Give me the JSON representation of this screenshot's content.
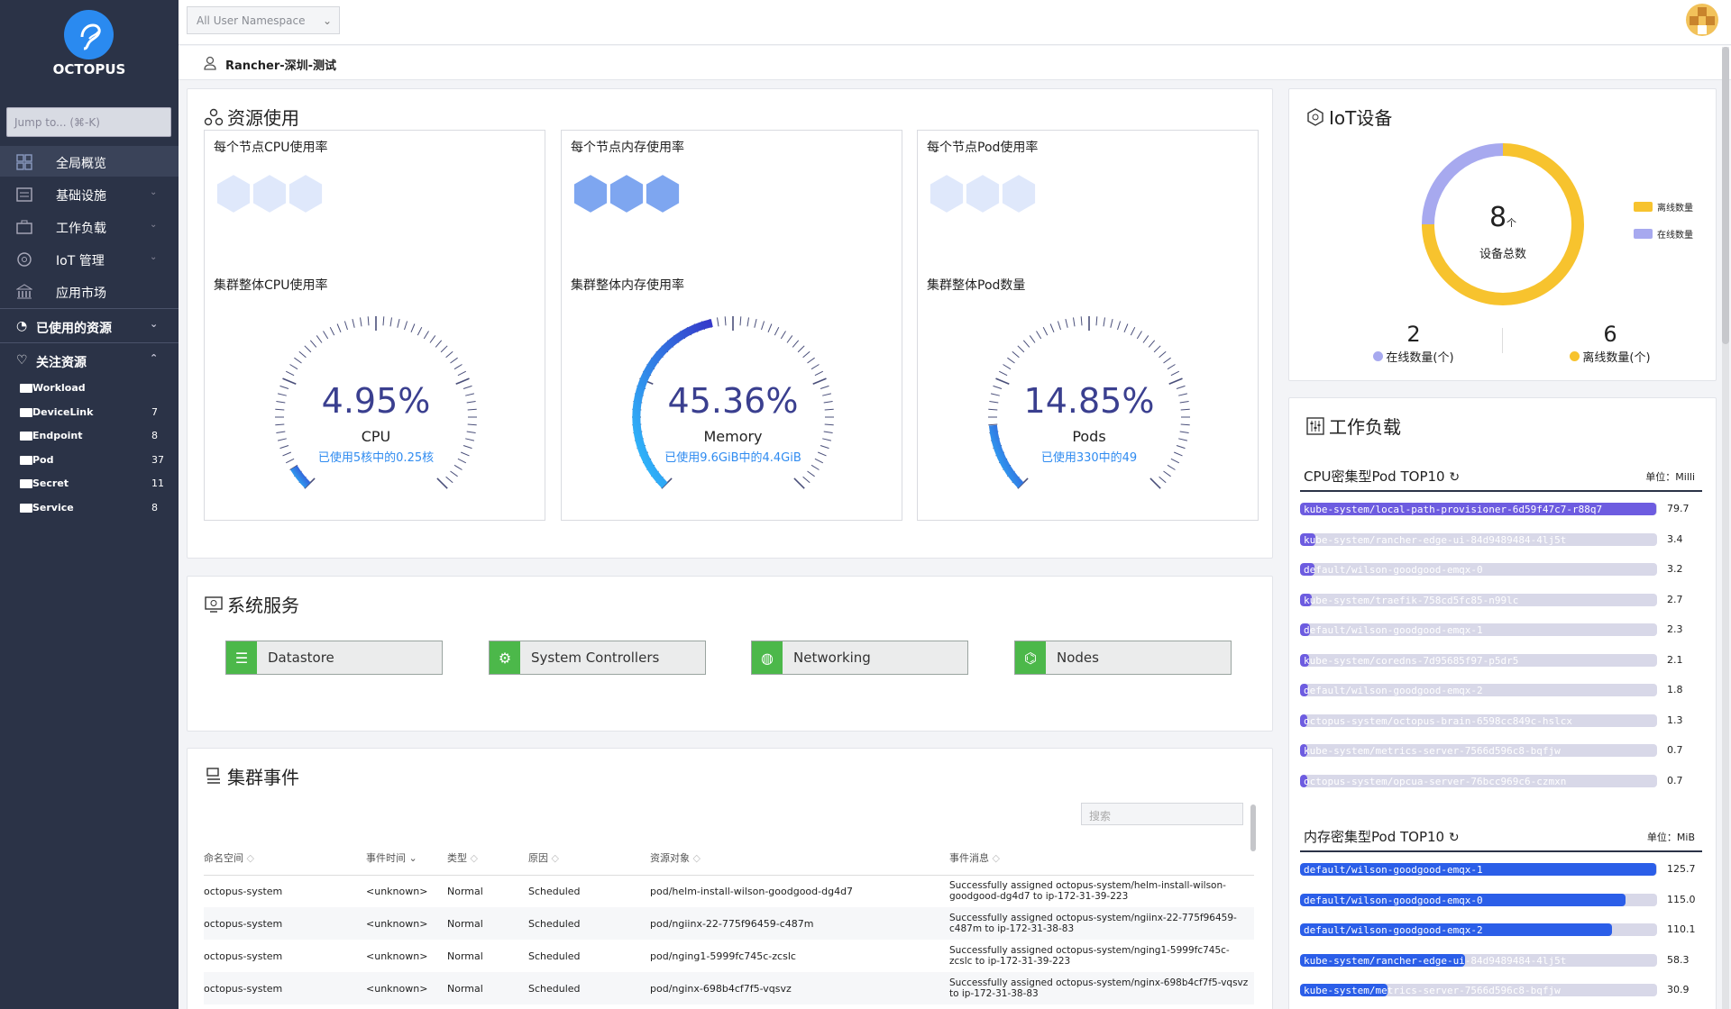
{
  "app": {
    "name": "OCTOPUS",
    "jump_placeholder": "Jump to... (⌘-K)"
  },
  "sidebar": {
    "items": [
      {
        "label": "全局概览",
        "icon": "dashboard-icon",
        "active": true
      },
      {
        "label": "基础设施",
        "icon": "server-icon"
      },
      {
        "label": "工作负载",
        "icon": "briefcase-icon"
      },
      {
        "label": "IoT 管理",
        "icon": "iot-icon"
      },
      {
        "label": "应用市场",
        "icon": "bank-icon"
      }
    ],
    "used_resources": "已使用的资源",
    "favorites": {
      "title": "关注资源",
      "items": [
        {
          "label": "Workload",
          "count": ""
        },
        {
          "label": "DeviceLink",
          "count": "7"
        },
        {
          "label": "Endpoint",
          "count": "8"
        },
        {
          "label": "Pod",
          "count": "37"
        },
        {
          "label": "Secret",
          "count": "11"
        },
        {
          "label": "Service",
          "count": "8"
        }
      ]
    }
  },
  "topbar": {
    "namespace": "All User Namespace"
  },
  "breadcrumb": {
    "cluster": "Rancher-深圳-测试"
  },
  "resource_usage": {
    "title": "资源使用",
    "panels": [
      {
        "node_title": "每个节点CPU使用率",
        "cluster_title": "集群整体CPU使用率",
        "value": "4.95%",
        "name": "CPU",
        "sub": "已使用5核中的0.25核",
        "percent": 4.95
      },
      {
        "node_title": "每个节点内存使用率",
        "cluster_title": "集群整体内存使用率",
        "value": "45.36%",
        "name": "Memory",
        "sub": "已使用9.6GiB中的4.4GiB",
        "percent": 45.36
      },
      {
        "node_title": "每个节点Pod使用率",
        "cluster_title": "集群整体Pod数量",
        "value": "14.85%",
        "name": "Pods",
        "sub": "已使用330中的49",
        "percent": 14.85
      }
    ]
  },
  "system_services": {
    "title": "系统服务",
    "items": [
      {
        "label": "Datastore",
        "icon": "database-icon"
      },
      {
        "label": "System Controllers",
        "icon": "gear-icon"
      },
      {
        "label": "Networking",
        "icon": "globe-icon"
      },
      {
        "label": "Nodes",
        "icon": "nodes-icon"
      }
    ]
  },
  "events": {
    "title": "集群事件",
    "search_placeholder": "搜索",
    "columns": [
      "命名空间",
      "事件时间",
      "类型",
      "原因",
      "资源对象",
      "事件消息"
    ],
    "rows": [
      [
        "octopus-system",
        "<unknown>",
        "Normal",
        "Scheduled",
        "pod/helm-install-wilson-goodgood-dg4d7",
        "Successfully assigned octopus-system/helm-install-wilson-goodgood-dg4d7 to ip-172-31-39-223"
      ],
      [
        "octopus-system",
        "<unknown>",
        "Normal",
        "Scheduled",
        "pod/ngiinx-22-775f96459-c487m",
        "Successfully assigned octopus-system/ngiinx-22-775f96459-c487m to ip-172-31-38-83"
      ],
      [
        "octopus-system",
        "<unknown>",
        "Normal",
        "Scheduled",
        "pod/nging1-5999fc745c-zcslc",
        "Successfully assigned octopus-system/nging1-5999fc745c-zcslc to ip-172-31-39-223"
      ],
      [
        "octopus-system",
        "<unknown>",
        "Normal",
        "Scheduled",
        "pod/nginx-698b4cf7f5-vqsvz",
        "Successfully assigned octopus-system/nginx-698b4cf7f5-vqsvz to ip-172-31-38-83"
      ]
    ]
  },
  "iot": {
    "title": "IoT设备",
    "total": "8",
    "total_unit": "个",
    "total_label": "设备总数",
    "legend_offline": "离线数量",
    "legend_online": "在线数量",
    "online_value": "2",
    "online_label": "在线数量(个)",
    "offline_value": "6",
    "offline_label": "离线数量(个)",
    "colors": {
      "offline": "#f7c32e",
      "online": "#a7a9ef"
    },
    "chart_data": {
      "type": "pie",
      "categories": [
        "离线数量",
        "在线数量"
      ],
      "values": [
        6,
        2
      ]
    }
  },
  "workload": {
    "title": "工作负载",
    "cpu": {
      "title": "CPU密集型Pod TOP10",
      "unit": "单位：Milli",
      "chart_data": {
        "type": "bar",
        "categories": [
          "kube-system/local-path-provisioner-6d59f47c7-r88q7",
          "kube-system/rancher-edge-ui-84d9489484-4lj5t",
          "default/wilson-goodgood-emqx-0",
          "kube-system/traefik-758cd5fc85-n99lc",
          "default/wilson-goodgood-emqx-1",
          "kube-system/coredns-7d95685f97-p5dr5",
          "default/wilson-goodgood-emqx-2",
          "octopus-system/octopus-brain-6598cc849c-hslcx",
          "kube-system/metrics-server-7566d596c8-bqfjw",
          "octopus-system/opcua-server-76bcc969c6-czmxn"
        ],
        "values": [
          79.7,
          3.4,
          3.2,
          2.7,
          2.3,
          2.1,
          1.8,
          1.3,
          0.7,
          0.7
        ],
        "labels": [
          "79.7",
          "3.4",
          "3.2",
          "2.7",
          "2.3",
          "2.1",
          "1.8",
          "1.3",
          "0.7",
          "0.7"
        ]
      }
    },
    "mem": {
      "title": "内存密集型Pod TOP10",
      "unit": "单位：MiB",
      "chart_data": {
        "type": "bar",
        "categories": [
          "default/wilson-goodgood-emqx-1",
          "default/wilson-goodgood-emqx-0",
          "default/wilson-goodgood-emqx-2",
          "kube-system/rancher-edge-ui-84d9489484-4lj5t",
          "kube-system/metrics-server-7566d596c8-bqfjw"
        ],
        "values": [
          125.7,
          115.0,
          110.1,
          58.3,
          30.9
        ],
        "labels": [
          "125.7",
          "115.0",
          "110.1",
          "58.3",
          "30.9"
        ]
      }
    }
  }
}
